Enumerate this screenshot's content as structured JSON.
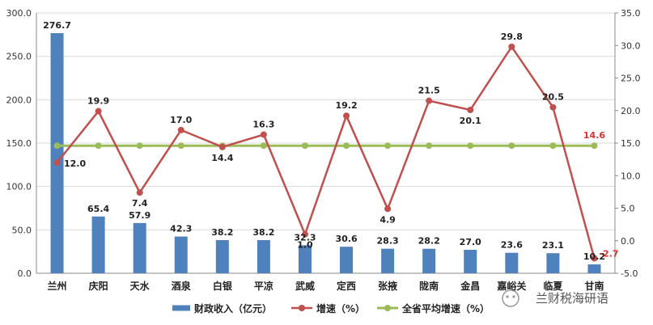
{
  "chart_data": {
    "type": "bar",
    "categories": [
      "兰州",
      "庆阳",
      "天水",
      "酒泉",
      "白银",
      "平凉",
      "武威",
      "定西",
      "张掖",
      "陇南",
      "金昌",
      "嘉峪关",
      "临夏",
      "甘南"
    ],
    "series": [
      {
        "name": "财政收入（亿元）",
        "type": "bar",
        "axis": "left",
        "color": "#4f81bd",
        "values": [
          276.7,
          65.4,
          57.9,
          42.3,
          38.2,
          38.2,
          32.3,
          30.6,
          28.3,
          28.2,
          27.0,
          23.6,
          23.1,
          10.2
        ],
        "labels": [
          "276.7",
          "65.4",
          "57.9",
          "42.3",
          "38.2",
          "38.2",
          "32.3",
          "30.6",
          "28.3",
          "28.2",
          "27.0",
          "23.6",
          "23.1",
          "10.2"
        ]
      },
      {
        "name": "增速（%）",
        "type": "line",
        "axis": "right",
        "color": "#c0504d",
        "values": [
          12.0,
          19.9,
          7.4,
          17.0,
          14.4,
          16.3,
          1.0,
          19.2,
          4.9,
          21.5,
          20.1,
          29.8,
          20.5,
          -2.7
        ],
        "labels": [
          "12.0",
          "19.9",
          "7.4",
          "17.0",
          "14.4",
          "16.3",
          "1.0",
          "19.2",
          "4.9",
          "21.5",
          "20.1",
          "29.8",
          "20.5",
          "-2.7"
        ]
      },
      {
        "name": "全省平均增速（%）",
        "type": "line",
        "axis": "right",
        "color": "#9bbb59",
        "values": [
          14.6,
          14.6,
          14.6,
          14.6,
          14.6,
          14.6,
          14.6,
          14.6,
          14.6,
          14.6,
          14.6,
          14.6,
          14.6,
          14.6
        ],
        "end_label": "14.6"
      }
    ],
    "y_left": {
      "min": 0,
      "max": 300,
      "step": 50,
      "ticks": [
        "0.0",
        "50.0",
        "100.0",
        "150.0",
        "200.0",
        "250.0",
        "300.0"
      ]
    },
    "y_right": {
      "min": -5,
      "max": 35,
      "step": 5,
      "ticks": [
        "-5.0",
        "0.0",
        "5.0",
        "10.0",
        "15.0",
        "20.0",
        "25.0",
        "30.0",
        "35.0"
      ]
    },
    "grid": true,
    "legend_position": "bottom"
  },
  "watermark": {
    "text": "兰财税海研语"
  }
}
